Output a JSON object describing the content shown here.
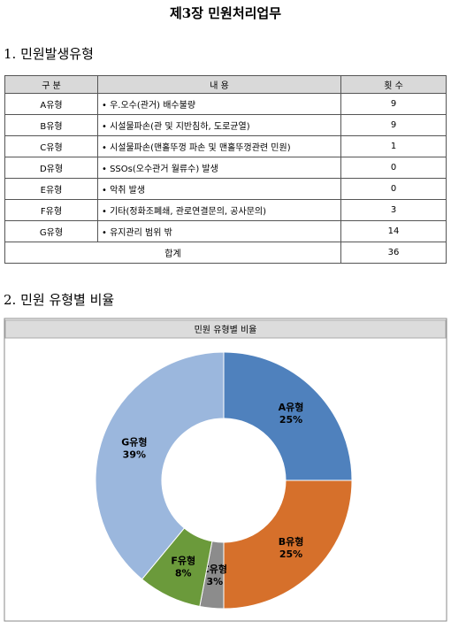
{
  "title": "제3장 민원처리업무",
  "sections": [
    {
      "heading": "1. 민원발생유형"
    },
    {
      "heading": "2. 민원 유형별 비율"
    }
  ],
  "table": {
    "header": [
      "구 분",
      "내 용",
      "횟 수"
    ],
    "rows": [
      [
        "A유형",
        "• 우.오수(관거) 배수불량",
        9
      ],
      [
        "B유형",
        "• 시설물파손(관 및 지반침하, 도로균열)",
        9
      ],
      [
        "C유형",
        "• 시설물파손(맨홀뚜껑 파손 및 맨홀뚜껑관련 민원)",
        1
      ],
      [
        "D유형",
        "• SSOs(오수관거 월류수) 발생",
        0
      ],
      [
        "E유형",
        "• 악취 발생",
        0
      ],
      [
        "F유형",
        "• 기타(정화조폐쇄, 관로연결문의, 공사문의)",
        3
      ],
      [
        "G유형",
        "• 유지관리 범위 밖",
        14
      ]
    ],
    "total": {
      "label": "합계",
      "value": 36
    }
  },
  "chart_data": {
    "type": "pie",
    "title": "민원 유형별 비율",
    "donut": true,
    "categories": [
      "A유형",
      "B유형",
      "C유형",
      "F유형",
      "G유형"
    ],
    "values": [
      25,
      25,
      3,
      8,
      39
    ],
    "value_labels": [
      "25%",
      "25%",
      "3%",
      "8%",
      "39%"
    ],
    "colors": [
      "#4f81bd",
      "#d6702b",
      "#8c8c8c",
      "#6b9a3b",
      "#9bb7dd"
    ]
  }
}
